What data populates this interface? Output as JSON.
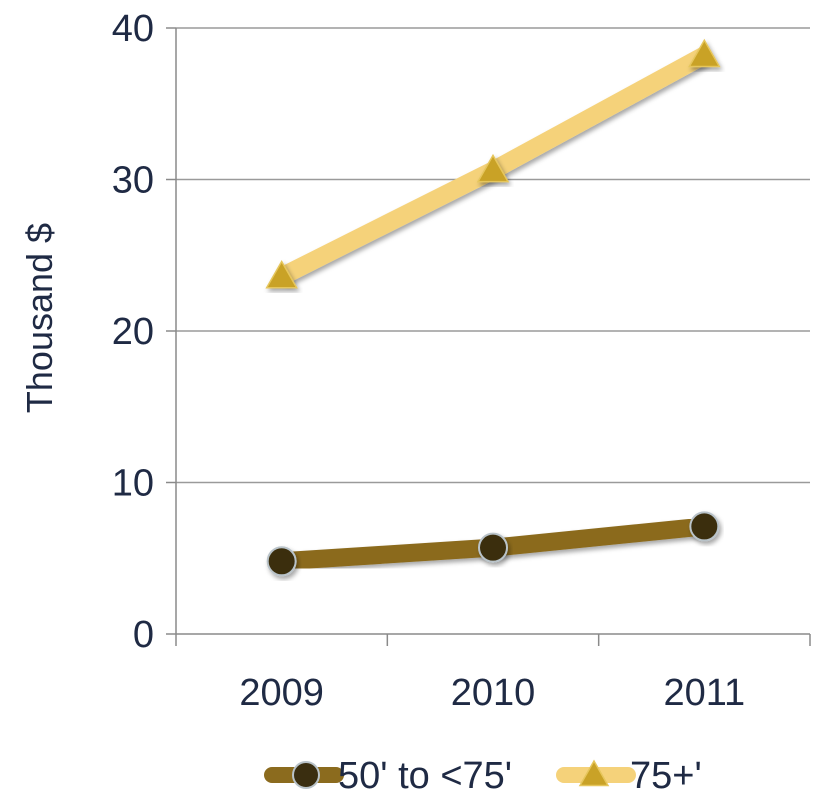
{
  "chart_data": {
    "type": "line",
    "categories": [
      "2009",
      "2010",
      "2011"
    ],
    "ylabel": "Thousand $",
    "xlabel": "",
    "ylim": [
      0,
      40
    ],
    "yticks": [
      "0",
      "10",
      "20",
      "30",
      "40"
    ],
    "grid": "horizontal",
    "legend_position": "bottom",
    "series": [
      {
        "name": "50' to <75'",
        "values": [
          4.8,
          5.7,
          7.1
        ],
        "color": "#8B6B1E",
        "marker": "circle",
        "marker_color": "#3a2e10"
      },
      {
        "name": "75+'",
        "values": [
          23.6,
          30.6,
          38.2
        ],
        "color": "#F5D27A",
        "marker": "triangle",
        "marker_color": "#C9A227"
      }
    ]
  }
}
